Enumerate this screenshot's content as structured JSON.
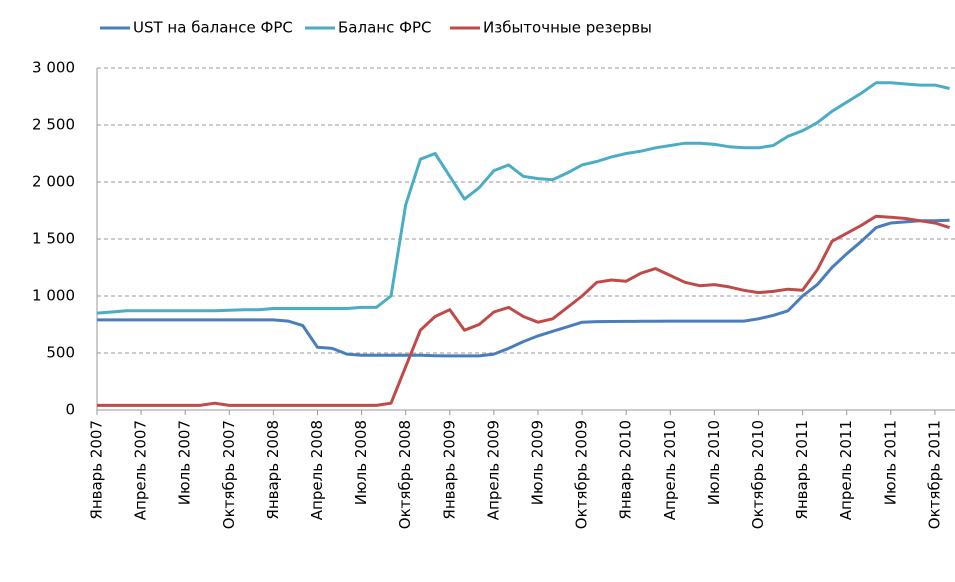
{
  "chart_data": {
    "type": "line",
    "categories": [
      "Январь 2007",
      null,
      null,
      "Апрель 2007",
      null,
      null,
      "Июль 2007",
      null,
      null,
      "Октябрь 2007",
      null,
      null,
      "Январь 2008",
      null,
      null,
      "Апрель 2008",
      null,
      null,
      "Июль 2008",
      null,
      null,
      "Октябрь 2008",
      null,
      null,
      "Январь 2009",
      null,
      null,
      "Апрель 2009",
      null,
      null,
      "Июль 2009",
      null,
      null,
      "Октябрь 2009",
      null,
      null,
      "Январь 2010",
      null,
      null,
      "Апрель 2010",
      null,
      null,
      "Июль 2010",
      null,
      null,
      "Октябрь 2010",
      null,
      null,
      "Январь 2011",
      null,
      null,
      "Апрель 2011",
      null,
      null,
      "Июль 2011",
      null,
      null,
      "Октябрь 2011",
      null
    ],
    "series": [
      {
        "name": "UST на балансе ФРС",
        "color": "#4a7ebb",
        "values": [
          790,
          790,
          790,
          790,
          790,
          790,
          790,
          790,
          790,
          790,
          790,
          790,
          790,
          780,
          740,
          550,
          540,
          490,
          480,
          480,
          480,
          480,
          480,
          476,
          475,
          475,
          475,
          490,
          540,
          600,
          650,
          690,
          730,
          770,
          775,
          776,
          777,
          778,
          779,
          780,
          780,
          780,
          780,
          780,
          780,
          800,
          830,
          870,
          1000,
          1100,
          1250,
          1370,
          1480,
          1600,
          1640,
          1650,
          1660,
          1660,
          1665
        ]
      },
      {
        "name": "Баланс ФРС",
        "color": "#4bacc6",
        "values": [
          850,
          860,
          870,
          870,
          870,
          870,
          870,
          870,
          870,
          875,
          880,
          880,
          890,
          890,
          890,
          890,
          890,
          890,
          900,
          900,
          1000,
          1800,
          2200,
          2250,
          2050,
          1850,
          1950,
          2100,
          2150,
          2050,
          2030,
          2020,
          2080,
          2150,
          2180,
          2220,
          2250,
          2270,
          2300,
          2320,
          2340,
          2340,
          2330,
          2310,
          2300,
          2300,
          2320,
          2400,
          2450,
          2520,
          2620,
          2700,
          2780,
          2870,
          2870,
          2860,
          2850,
          2850,
          2820
        ]
      },
      {
        "name": "Избыточные резервы",
        "color": "#be4b48",
        "values": [
          40,
          40,
          40,
          40,
          40,
          40,
          40,
          40,
          60,
          40,
          40,
          40,
          40,
          40,
          40,
          40,
          40,
          40,
          40,
          40,
          60,
          380,
          700,
          820,
          880,
          700,
          750,
          860,
          900,
          820,
          770,
          800,
          900,
          1000,
          1120,
          1140,
          1130,
          1200,
          1240,
          1180,
          1120,
          1090,
          1100,
          1080,
          1050,
          1030,
          1040,
          1060,
          1050,
          1230,
          1480,
          1550,
          1620,
          1700,
          1690,
          1680,
          1660,
          1640,
          1600
        ]
      }
    ],
    "ylim": [
      0,
      3000
    ],
    "yticks": [
      0,
      500,
      {
        "value": 1000,
        "label": "1 000"
      },
      {
        "value": 1500,
        "label": "1 500"
      },
      {
        "value": 2000,
        "label": "2 000"
      },
      {
        "value": 2500,
        "label": "2 500"
      },
      {
        "value": 3000,
        "label": "3 000"
      }
    ],
    "grid": true,
    "legend": "top"
  }
}
